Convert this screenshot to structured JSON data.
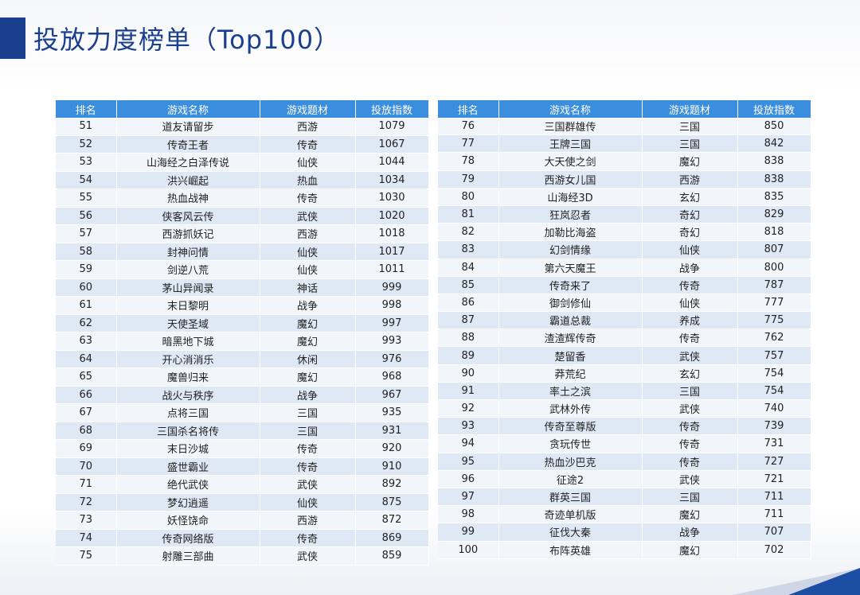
{
  "title": "投放力度榜单（Top100）",
  "headers": [
    "排名",
    "游戏名称",
    "游戏题材",
    "投放指数"
  ],
  "left_rows": [
    [
      "51",
      "道友请留步",
      "西游",
      "1079"
    ],
    [
      "52",
      "传奇王者",
      "传奇",
      "1067"
    ],
    [
      "53",
      "山海经之白泽传说",
      "仙侠",
      "1044"
    ],
    [
      "54",
      "洪兴崛起",
      "热血",
      "1034"
    ],
    [
      "55",
      "热血战神",
      "传奇",
      "1030"
    ],
    [
      "56",
      "侠客风云传",
      "武侠",
      "1020"
    ],
    [
      "57",
      "西游抓妖记",
      "西游",
      "1018"
    ],
    [
      "58",
      "封神问情",
      "仙侠",
      "1017"
    ],
    [
      "59",
      "剑逆八荒",
      "仙侠",
      "1011"
    ],
    [
      "60",
      "茅山异闻录",
      "神话",
      "999"
    ],
    [
      "61",
      "末日黎明",
      "战争",
      "998"
    ],
    [
      "62",
      "天使圣域",
      "魔幻",
      "997"
    ],
    [
      "63",
      "暗黑地下城",
      "魔幻",
      "993"
    ],
    [
      "64",
      "开心消消乐",
      "休闲",
      "976"
    ],
    [
      "65",
      "魔兽归来",
      "魔幻",
      "968"
    ],
    [
      "66",
      "战火与秩序",
      "战争",
      "967"
    ],
    [
      "67",
      "点将三国",
      "三国",
      "935"
    ],
    [
      "68",
      "三国杀名将传",
      "三国",
      "931"
    ],
    [
      "69",
      "末日沙城",
      "传奇",
      "920"
    ],
    [
      "70",
      "盛世霸业",
      "传奇",
      "910"
    ],
    [
      "71",
      "绝代武侠",
      "武侠",
      "892"
    ],
    [
      "72",
      "梦幻逍遥",
      "仙侠",
      "875"
    ],
    [
      "73",
      "妖怪饶命",
      "西游",
      "872"
    ],
    [
      "74",
      "传奇网络版",
      "传奇",
      "869"
    ],
    [
      "75",
      "射雕三部曲",
      "武侠",
      "859"
    ]
  ],
  "right_rows": [
    [
      "76",
      "三国群雄传",
      "三国",
      "850"
    ],
    [
      "77",
      "王牌三国",
      "三国",
      "842"
    ],
    [
      "78",
      "大天使之剑",
      "魔幻",
      "838"
    ],
    [
      "79",
      "西游女儿国",
      "西游",
      "838"
    ],
    [
      "80",
      "山海经3D",
      "玄幻",
      "835"
    ],
    [
      "81",
      "狂岚忍者",
      "奇幻",
      "829"
    ],
    [
      "82",
      "加勒比海盗",
      "奇幻",
      "818"
    ],
    [
      "83",
      "幻剑情缘",
      "仙侠",
      "807"
    ],
    [
      "84",
      "第六天魔王",
      "战争",
      "800"
    ],
    [
      "85",
      "传奇来了",
      "传奇",
      "787"
    ],
    [
      "86",
      "御剑修仙",
      "仙侠",
      "777"
    ],
    [
      "87",
      "霸道总裁",
      "养成",
      "775"
    ],
    [
      "88",
      "渣渣辉传奇",
      "传奇",
      "762"
    ],
    [
      "89",
      "楚留香",
      "武侠",
      "757"
    ],
    [
      "90",
      "莽荒纪",
      "玄幻",
      "754"
    ],
    [
      "91",
      "率土之滨",
      "三国",
      "754"
    ],
    [
      "92",
      "武林外传",
      "武侠",
      "740"
    ],
    [
      "93",
      "传奇至尊版",
      "传奇",
      "739"
    ],
    [
      "94",
      "贪玩传世",
      "传奇",
      "731"
    ],
    [
      "95",
      "热血沙巴克",
      "传奇",
      "727"
    ],
    [
      "96",
      "征途2",
      "武侠",
      "721"
    ],
    [
      "97",
      "群英三国",
      "三国",
      "711"
    ],
    [
      "98",
      "奇迹单机版",
      "魔幻",
      "711"
    ],
    [
      "99",
      "征伐大秦",
      "战争",
      "707"
    ],
    [
      "100",
      "布阵英雄",
      "魔幻",
      "702"
    ]
  ],
  "colors": {
    "header_bg": "#3b8ede",
    "row_even": "#dfe8f5",
    "row_odd": "#f2f5fa",
    "title": "#1b3f8f",
    "accent": "#1b3f8f"
  }
}
